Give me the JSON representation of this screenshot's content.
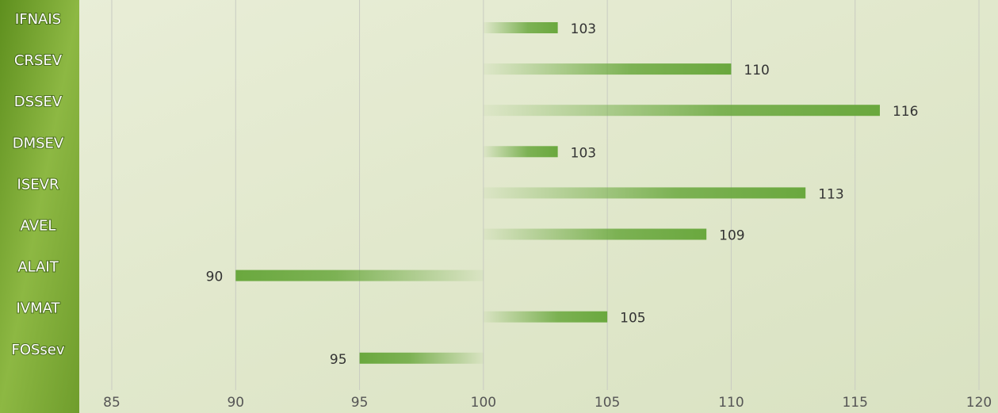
{
  "chart_data": {
    "type": "bar",
    "orientation": "horizontal",
    "categories": [
      "IFNAIS",
      "CRSEV",
      "DSSEV",
      "DMSEV",
      "ISEVR",
      "AVEL",
      "ALAIT",
      "IVMAT",
      "FOSsev"
    ],
    "values": [
      103,
      110,
      116,
      103,
      113,
      109,
      90,
      105,
      95
    ],
    "baseline": 100,
    "color": "#6aa83e",
    "xlim": [
      85,
      120
    ],
    "xticks": [
      85,
      90,
      95,
      100,
      105,
      110,
      115,
      120
    ],
    "grid": true
  }
}
